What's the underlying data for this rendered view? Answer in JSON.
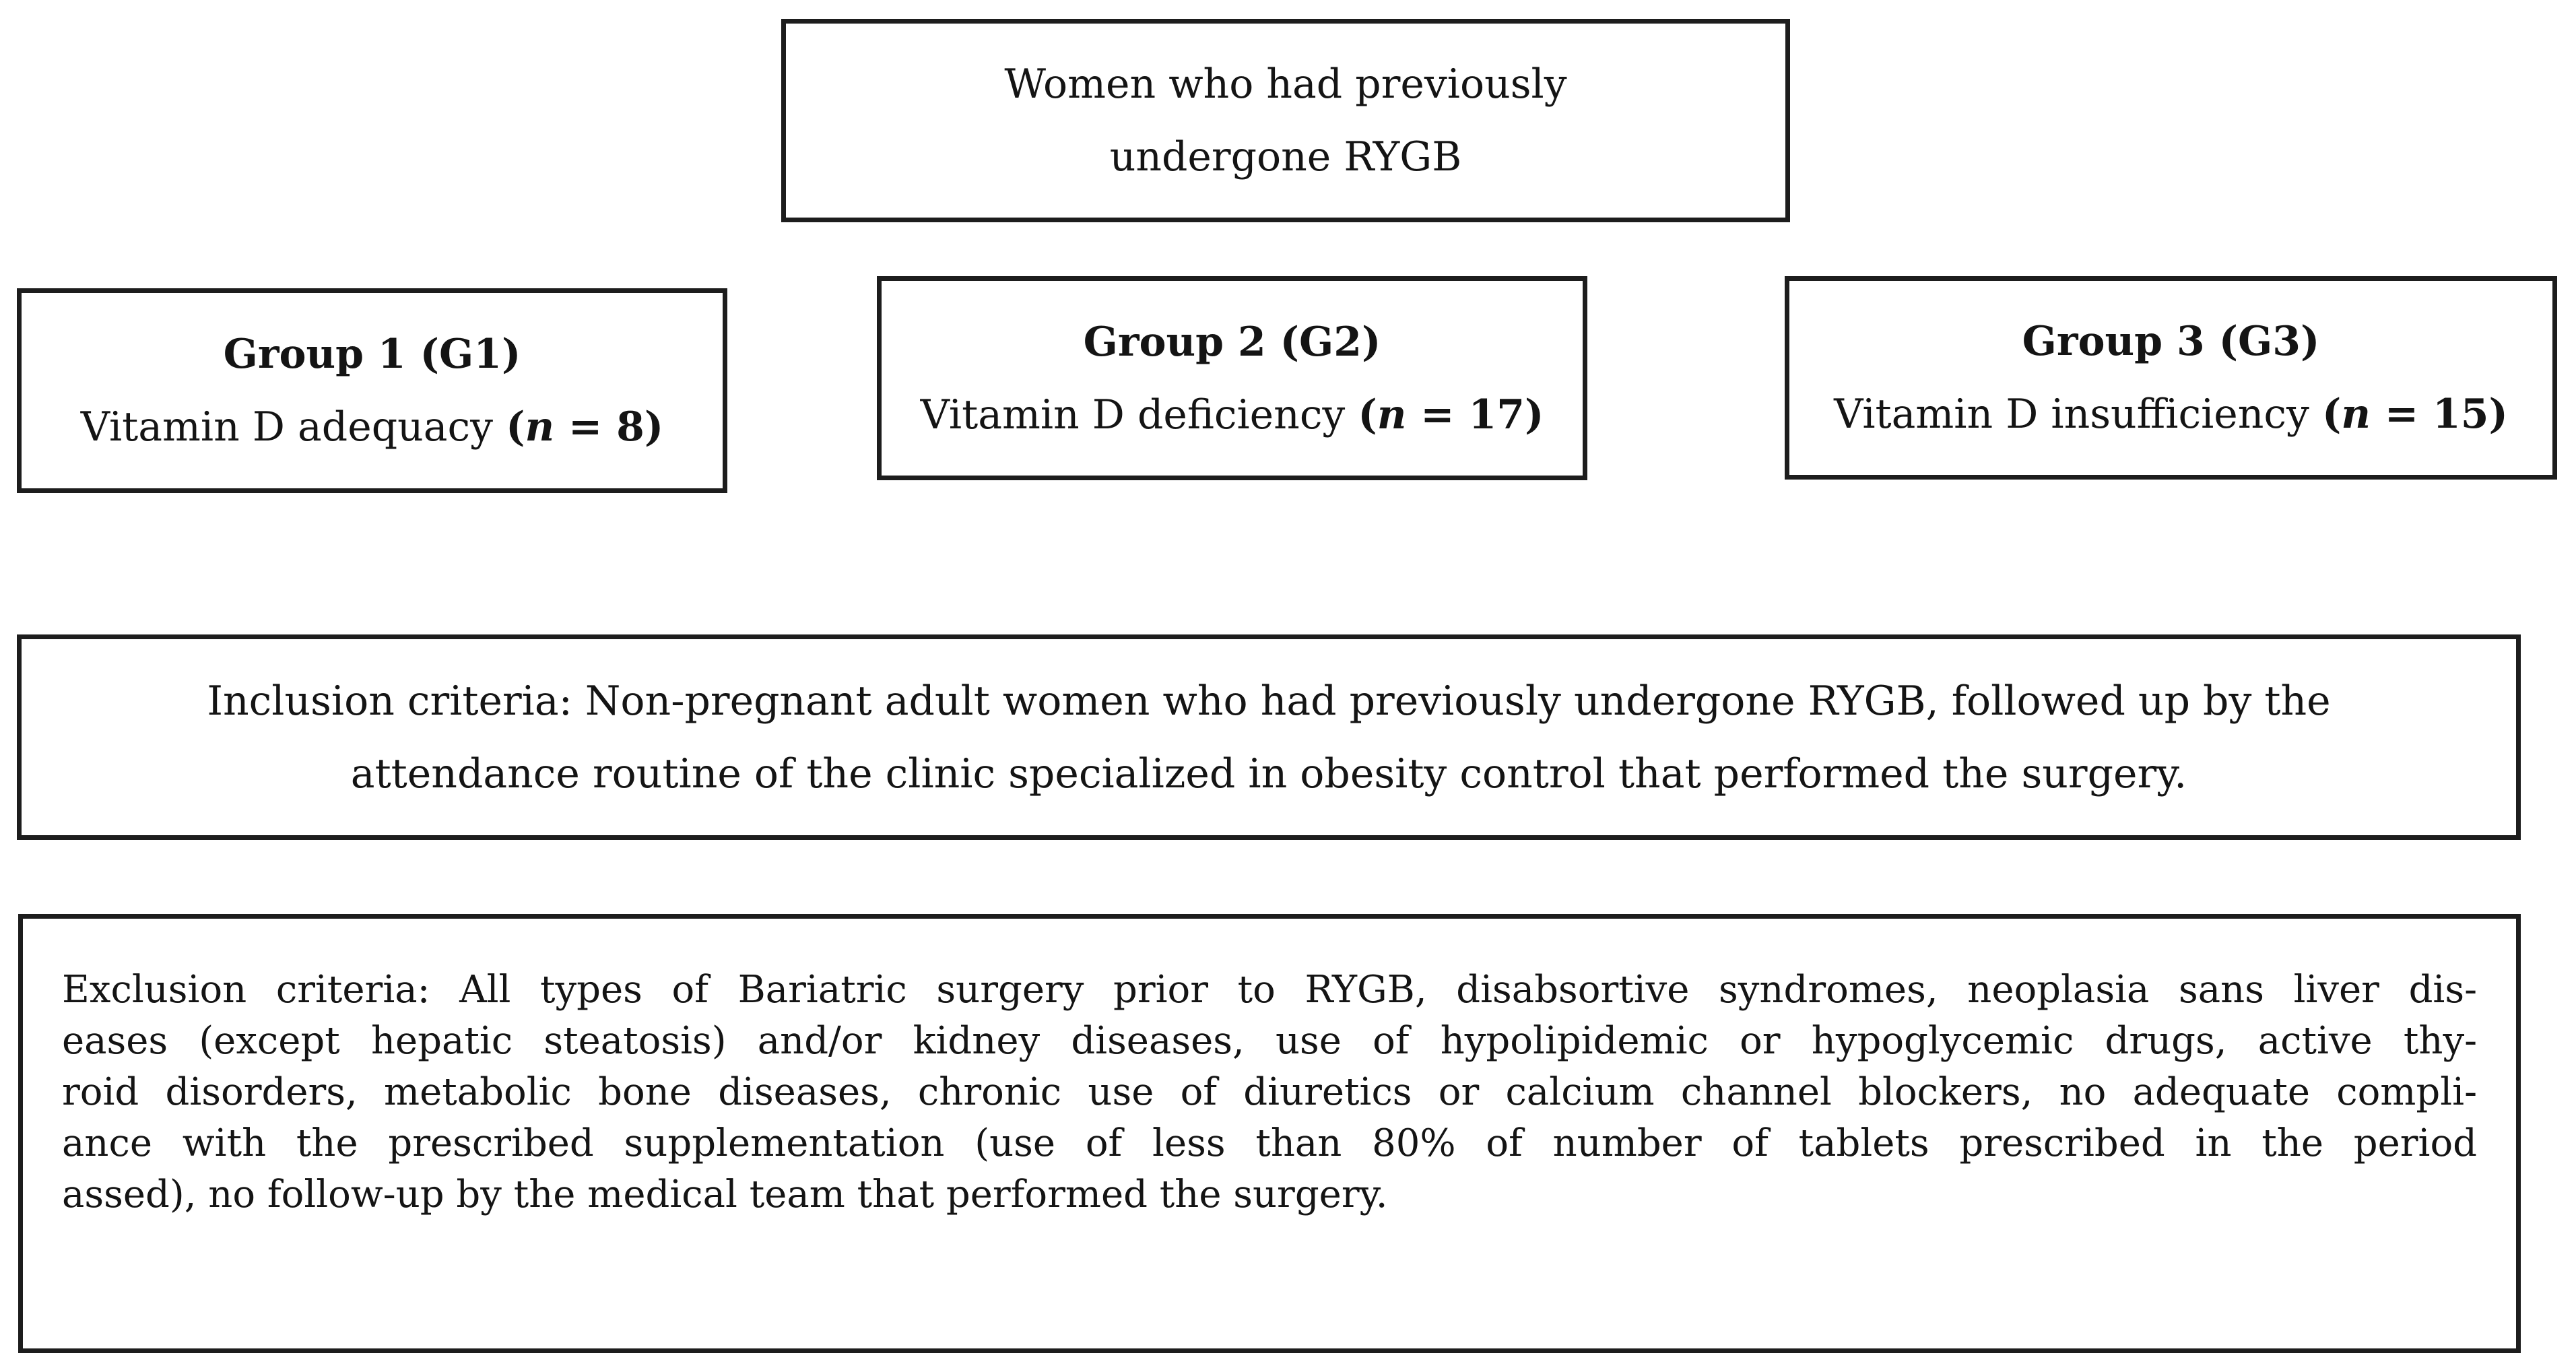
{
  "figure": {
    "background": "#ffffff",
    "border_color": "#1d1d1d",
    "text_color": "#141414"
  },
  "top_box": {
    "lines": [
      "Women who had previously",
      "undergone RYGB"
    ]
  },
  "groups": [
    {
      "title": "Group 1 (G1)",
      "label": "Vitamin D adequacy ",
      "n_open": "(",
      "n_var": "n",
      "n_rest": " = 8)"
    },
    {
      "title": "Group 2 (G2)",
      "label": "Vitamin D deficiency ",
      "n_open": "(",
      "n_var": "n",
      "n_rest": " = 17)"
    },
    {
      "title": "Group 3 (G3)",
      "label": "Vitamin D insufficiency ",
      "n_open": "(",
      "n_var": "n",
      "n_rest": " = 15)"
    }
  ],
  "inclusion_box": {
    "lines": [
      "Inclusion criteria: Non-pregnant adult women who had previously undergone RYGB, followed up by the",
      "attendance routine of the clinic specialized in obesity control that performed the surgery."
    ]
  },
  "exclusion_box": {
    "lines": [
      "Exclusion criteria: All types of Bariatric surgery prior to RYGB, disabsortive syndromes, neoplasia sans liver dis-",
      "eases (except hepatic steatosis) and/or kidney diseases, use of hypolipidemic or hypoglycemic drugs, active thy-",
      "roid disorders, metabolic bone diseases, chronic use of diuretics or calcium channel blockers, no adequate compli-",
      "ance with the prescribed supplementation (use of less than 80% of number of tablets prescribed in the period",
      "assed), no follow-up by the medical team that performed the surgery."
    ]
  }
}
